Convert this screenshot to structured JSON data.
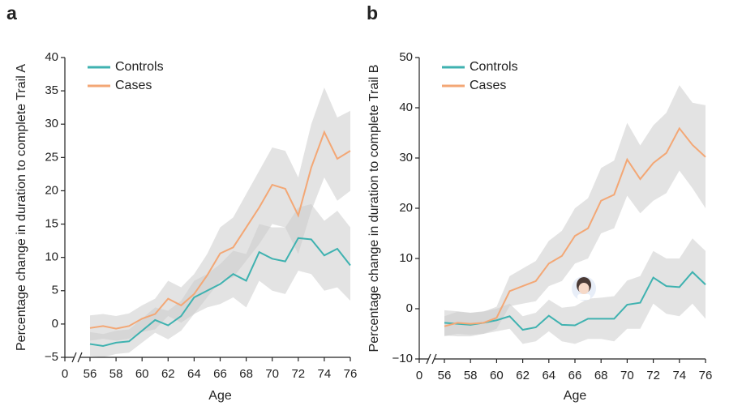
{
  "chart_data": [
    {
      "type": "line",
      "panel_label": "a",
      "ylabel": "Percentage change in duration to complete Trail A",
      "xlabel": "Age",
      "x": [
        56,
        57,
        58,
        59,
        60,
        61,
        62,
        63,
        64,
        65,
        66,
        67,
        68,
        69,
        70,
        71,
        72,
        73,
        74,
        75,
        76
      ],
      "xlim": [
        0,
        76
      ],
      "xbreak": [
        0,
        56
      ],
      "xticks": [
        0,
        56,
        58,
        60,
        62,
        64,
        66,
        68,
        70,
        72,
        74,
        76
      ],
      "ylim": [
        -5,
        40
      ],
      "yticks": [
        {
          "value": -5,
          "label": "−5"
        },
        0,
        5,
        10,
        15,
        20,
        25,
        30,
        35,
        40
      ],
      "legend": "upper left",
      "band_color": "#cccccc",
      "series": [
        {
          "name": "Controls",
          "color": "#3fb2b0",
          "values": [
            -3.0,
            -3.3,
            -2.8,
            -2.6,
            -1.0,
            0.6,
            -0.2,
            1.2,
            4.0,
            5.0,
            6.0,
            7.5,
            6.5,
            10.8,
            9.8,
            9.4,
            12.9,
            12.7,
            10.3,
            11.3,
            8.8
          ],
          "ci_lower": [
            -4.8,
            -5.0,
            -4.5,
            -4.3,
            -2.8,
            -1.3,
            -2.3,
            -1.0,
            1.5,
            2.5,
            3.0,
            4.0,
            2.5,
            6.5,
            5.0,
            4.5,
            8.0,
            7.5,
            5.0,
            5.5,
            3.5
          ],
          "ci_upper": [
            -1.2,
            -1.5,
            -1.0,
            -0.8,
            0.8,
            2.5,
            2.0,
            3.5,
            6.5,
            7.5,
            9.0,
            11.0,
            10.5,
            15.0,
            14.5,
            14.5,
            17.5,
            18.0,
            15.5,
            17.0,
            14.5
          ]
        },
        {
          "name": "Cases",
          "color": "#f3a775",
          "values": [
            -0.6,
            -0.3,
            -0.7,
            -0.3,
            0.8,
            1.5,
            3.8,
            2.8,
            4.5,
            7.3,
            10.6,
            11.5,
            14.5,
            17.5,
            20.9,
            20.3,
            16.3,
            23.5,
            28.8,
            24.8,
            26.0
          ],
          "ci_lower": [
            -2.5,
            -2.2,
            -2.5,
            -2.2,
            -1.2,
            -0.8,
            1.2,
            0.2,
            1.5,
            4.0,
            6.5,
            7.0,
            9.5,
            12.0,
            15.0,
            14.5,
            10.5,
            17.0,
            22.0,
            18.5,
            20.0
          ],
          "ci_upper": [
            1.3,
            1.5,
            1.2,
            1.6,
            2.8,
            3.8,
            6.5,
            5.5,
            7.5,
            10.5,
            14.5,
            16.0,
            19.5,
            23.0,
            26.5,
            26.0,
            22.0,
            30.0,
            35.5,
            31.0,
            32.0
          ]
        }
      ]
    },
    {
      "type": "line",
      "panel_label": "b",
      "ylabel": "Percentage change in duration to complete Trail B",
      "xlabel": "Age",
      "x": [
        56,
        57,
        58,
        59,
        60,
        61,
        62,
        63,
        64,
        65,
        66,
        67,
        68,
        69,
        70,
        71,
        72,
        73,
        74,
        75,
        76
      ],
      "xlim": [
        0,
        76
      ],
      "xbreak": [
        0,
        56
      ],
      "xticks": [
        0,
        56,
        58,
        60,
        62,
        64,
        66,
        68,
        70,
        72,
        74,
        76
      ],
      "ylim": [
        -10,
        50
      ],
      "yticks": [
        {
          "value": -10,
          "label": "−10"
        },
        0,
        10,
        20,
        30,
        40,
        50
      ],
      "legend": "upper left",
      "band_color": "#cccccc",
      "series": [
        {
          "name": "Controls",
          "color": "#3fb2b0",
          "values": [
            -2.8,
            -3.0,
            -3.2,
            -2.8,
            -2.3,
            -1.5,
            -4.2,
            -3.7,
            -1.4,
            -3.2,
            -3.3,
            -2.0,
            -2.0,
            -2.0,
            0.8,
            1.2,
            6.2,
            4.5,
            4.3,
            7.3,
            4.8
          ],
          "ci_lower": [
            -5.3,
            -5.5,
            -5.5,
            -5.0,
            -4.5,
            -4.0,
            -7.0,
            -6.5,
            -4.5,
            -6.5,
            -7.0,
            -6.0,
            -6.0,
            -6.5,
            -4.0,
            -4.0,
            1.0,
            -1.0,
            -1.5,
            1.0,
            -2.0
          ],
          "ci_upper": [
            -0.3,
            -0.5,
            -0.8,
            -0.5,
            0.0,
            1.0,
            -1.5,
            -0.8,
            1.8,
            0.2,
            0.5,
            2.0,
            2.2,
            2.5,
            5.6,
            6.5,
            11.5,
            10.0,
            10.0,
            14.0,
            11.5
          ]
        },
        {
          "name": "Cases",
          "color": "#f3a775",
          "values": [
            -3.5,
            -2.8,
            -3.0,
            -2.8,
            -1.8,
            3.5,
            4.5,
            5.5,
            9.0,
            10.5,
            14.5,
            16.0,
            21.5,
            22.7,
            29.7,
            25.8,
            29.0,
            31.0,
            35.9,
            32.6,
            30.2
          ],
          "ci_lower": [
            -5.5,
            -5.0,
            -5.2,
            -5.0,
            -4.0,
            0.5,
            1.0,
            1.5,
            4.5,
            5.5,
            9.0,
            10.0,
            15.0,
            16.0,
            22.5,
            19.0,
            21.5,
            23.0,
            27.5,
            24.0,
            20.0
          ],
          "ci_upper": [
            -1.5,
            -0.6,
            -0.8,
            -0.6,
            0.4,
            6.5,
            8.0,
            9.5,
            13.5,
            15.5,
            20.0,
            22.0,
            28.0,
            29.5,
            37.0,
            32.5,
            36.5,
            39.0,
            44.5,
            41.0,
            40.5
          ]
        }
      ]
    }
  ]
}
